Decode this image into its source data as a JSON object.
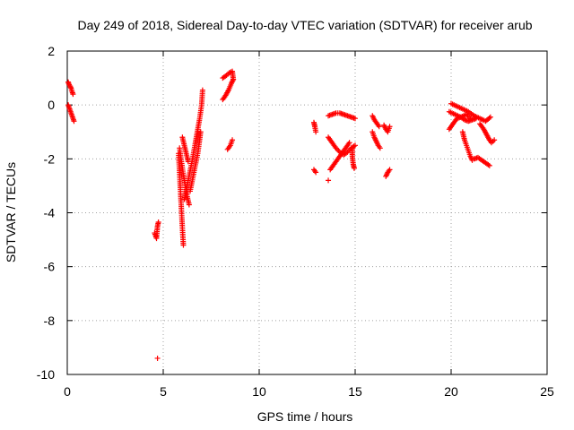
{
  "chart_data": {
    "type": "scatter",
    "title": "Day 249 of 2018, Sidereal Day-to-day VTEC variation (SDTVAR) for receiver arub",
    "xlabel": "GPS time / hours",
    "ylabel": "SDTVAR / TECUs",
    "xlim": [
      0,
      25
    ],
    "ylim": [
      -10,
      2
    ],
    "xticks": [
      0,
      5,
      10,
      15,
      20,
      25
    ],
    "yticks": [
      -10,
      -8,
      -6,
      -4,
      -2,
      0,
      2
    ],
    "grid": true,
    "marker": "+",
    "marker_color": "#ff0000",
    "series": [
      {
        "name": "SDTVAR",
        "segments": [
          [
            [
              0.05,
              0.85
            ],
            [
              0.1,
              0.75
            ],
            [
              0.15,
              0.7
            ],
            [
              0.2,
              0.62
            ],
            [
              0.25,
              0.5
            ],
            [
              0.3,
              0.4
            ]
          ],
          [
            [
              0.05,
              0.0
            ],
            [
              0.1,
              -0.1
            ],
            [
              0.15,
              -0.2
            ],
            [
              0.2,
              -0.3
            ],
            [
              0.25,
              -0.4
            ],
            [
              0.3,
              -0.5
            ],
            [
              0.35,
              -0.6
            ]
          ],
          [
            [
              4.55,
              -4.75
            ],
            [
              4.6,
              -4.85
            ],
            [
              4.65,
              -4.95
            ],
            [
              4.7,
              -4.5
            ],
            [
              4.75,
              -4.35
            ]
          ],
          [
            [
              4.7,
              -9.4
            ]
          ],
          [
            [
              5.8,
              -1.8
            ],
            [
              5.85,
              -2.5
            ],
            [
              5.9,
              -3.2
            ],
            [
              5.95,
              -3.9
            ],
            [
              6.0,
              -4.6
            ],
            [
              6.05,
              -5.2
            ]
          ],
          [
            [
              5.85,
              -1.6
            ],
            [
              5.95,
              -2.1
            ],
            [
              6.05,
              -2.6
            ],
            [
              6.15,
              -3.0
            ],
            [
              6.25,
              -3.4
            ],
            [
              6.35,
              -3.7
            ]
          ],
          [
            [
              6.0,
              -1.2
            ],
            [
              6.1,
              -1.5
            ],
            [
              6.2,
              -1.8
            ],
            [
              6.3,
              -2.1
            ]
          ],
          [
            [
              6.1,
              -3.5
            ],
            [
              6.3,
              -2.8
            ],
            [
              6.5,
              -2.1
            ],
            [
              6.7,
              -1.3
            ],
            [
              6.9,
              -0.5
            ],
            [
              7.0,
              0.0
            ],
            [
              7.05,
              0.55
            ]
          ],
          [
            [
              6.4,
              -3.2
            ],
            [
              6.6,
              -2.5
            ],
            [
              6.8,
              -1.8
            ],
            [
              6.95,
              -1.0
            ]
          ],
          [
            [
              8.1,
              1.0
            ],
            [
              8.3,
              1.1
            ],
            [
              8.45,
              1.2
            ],
            [
              8.6,
              1.25
            ],
            [
              8.65,
              0.95
            ]
          ],
          [
            [
              8.1,
              0.2
            ],
            [
              8.25,
              0.35
            ],
            [
              8.4,
              0.55
            ],
            [
              8.55,
              0.8
            ],
            [
              8.65,
              0.95
            ]
          ],
          [
            [
              8.35,
              -1.65
            ],
            [
              8.5,
              -1.5
            ],
            [
              8.6,
              -1.3
            ]
          ],
          [
            [
              12.85,
              -0.65
            ],
            [
              12.9,
              -0.8
            ],
            [
              12.95,
              -1.0
            ]
          ],
          [
            [
              12.85,
              -2.4
            ],
            [
              12.95,
              -2.5
            ]
          ],
          [
            [
              13.6,
              -2.8
            ]
          ],
          [
            [
              13.6,
              -1.2
            ],
            [
              13.8,
              -1.4
            ],
            [
              14.0,
              -1.6
            ],
            [
              14.2,
              -1.75
            ],
            [
              14.4,
              -1.85
            ],
            [
              14.6,
              -1.75
            ],
            [
              14.8,
              -1.6
            ],
            [
              15.0,
              -1.5
            ]
          ],
          [
            [
              13.6,
              -0.4
            ],
            [
              13.8,
              -0.35
            ],
            [
              14.0,
              -0.3
            ],
            [
              14.2,
              -0.3
            ],
            [
              14.4,
              -0.35
            ],
            [
              14.6,
              -0.4
            ],
            [
              14.8,
              -0.45
            ],
            [
              15.0,
              -0.5
            ]
          ],
          [
            [
              13.7,
              -2.4
            ],
            [
              13.9,
              -2.2
            ],
            [
              14.1,
              -2.0
            ],
            [
              14.3,
              -1.8
            ],
            [
              14.5,
              -1.6
            ],
            [
              14.7,
              -1.4
            ]
          ],
          [
            [
              14.85,
              -1.6
            ],
            [
              14.85,
              -1.9
            ],
            [
              14.9,
              -2.2
            ],
            [
              14.95,
              -2.35
            ]
          ],
          [
            [
              15.9,
              -0.4
            ],
            [
              16.0,
              -0.55
            ],
            [
              16.1,
              -0.65
            ],
            [
              16.25,
              -0.8
            ]
          ],
          [
            [
              16.5,
              -0.75
            ],
            [
              16.6,
              -0.9
            ],
            [
              16.7,
              -1.0
            ],
            [
              16.8,
              -0.8
            ]
          ],
          [
            [
              15.9,
              -1.0
            ],
            [
              16.0,
              -1.2
            ],
            [
              16.1,
              -1.35
            ],
            [
              16.2,
              -1.5
            ],
            [
              16.3,
              -1.6
            ]
          ],
          [
            [
              16.6,
              -2.65
            ],
            [
              16.7,
              -2.5
            ],
            [
              16.8,
              -2.4
            ]
          ],
          [
            [
              19.9,
              -0.9
            ],
            [
              20.1,
              -0.7
            ],
            [
              20.3,
              -0.5
            ],
            [
              20.5,
              -0.45
            ],
            [
              20.7,
              -0.55
            ],
            [
              20.9,
              -0.6
            ],
            [
              21.1,
              -0.55
            ],
            [
              21.3,
              -0.5
            ]
          ],
          [
            [
              19.9,
              -0.25
            ],
            [
              20.2,
              -0.35
            ],
            [
              20.5,
              -0.45
            ],
            [
              20.8,
              -0.35
            ],
            [
              21.0,
              -0.5
            ]
          ],
          [
            [
              20.0,
              0.05
            ],
            [
              20.3,
              -0.05
            ],
            [
              20.6,
              -0.15
            ],
            [
              20.9,
              -0.25
            ],
            [
              21.2,
              -0.4
            ],
            [
              21.5,
              -0.5
            ],
            [
              21.8,
              -0.6
            ],
            [
              22.05,
              -0.45
            ]
          ],
          [
            [
              20.6,
              -1.0
            ],
            [
              20.7,
              -1.3
            ],
            [
              20.8,
              -1.5
            ],
            [
              20.9,
              -1.7
            ],
            [
              21.0,
              -1.9
            ],
            [
              21.1,
              -2.05
            ]
          ],
          [
            [
              21.2,
              -2.0
            ],
            [
              21.4,
              -1.95
            ],
            [
              21.6,
              -2.05
            ],
            [
              21.8,
              -2.15
            ],
            [
              22.0,
              -2.25
            ]
          ],
          [
            [
              21.5,
              -0.7
            ],
            [
              21.7,
              -0.9
            ],
            [
              21.85,
              -1.1
            ],
            [
              22.0,
              -1.3
            ],
            [
              22.1,
              -1.4
            ],
            [
              22.25,
              -1.3
            ]
          ]
        ]
      }
    ]
  }
}
